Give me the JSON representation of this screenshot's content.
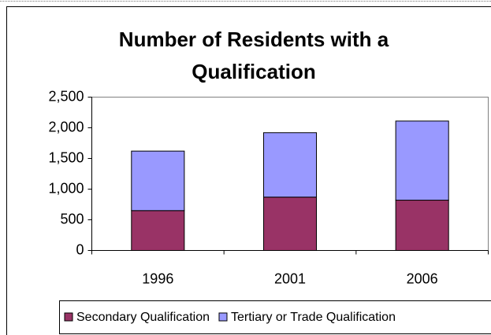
{
  "chart_data": {
    "type": "stacked_bar",
    "title": "Number of Residents with a Qualification",
    "categories": [
      "1996",
      "2001",
      "2006"
    ],
    "series": [
      {
        "name": "Secondary Qualification",
        "color": "#993366",
        "values": [
          650,
          870,
          820
        ]
      },
      {
        "name": "Tertiary or Trade Qualification",
        "color": "#9999ff",
        "values": [
          970,
          1050,
          1290
        ]
      }
    ],
    "ylim": [
      0,
      2500
    ],
    "yticks": [
      0,
      500,
      {
        "value": 1000,
        "label": "1,000"
      },
      {
        "value": 1500,
        "label": "1,500"
      },
      {
        "value": 2000,
        "label": "2,000"
      },
      {
        "value": 2500,
        "label": "2,500"
      }
    ],
    "grid": false,
    "legend": "bottom"
  }
}
